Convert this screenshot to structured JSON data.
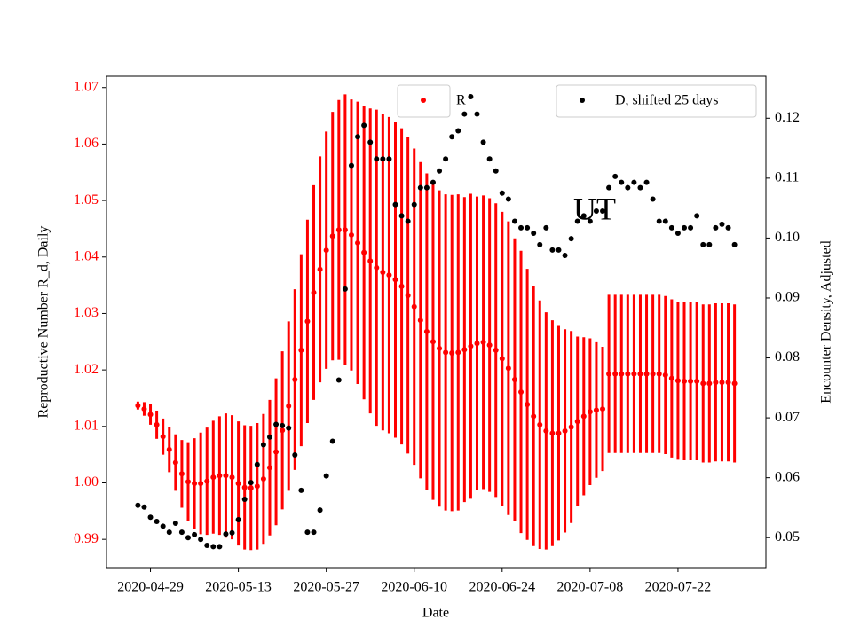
{
  "chart_data": {
    "type": "scatter",
    "x_label": "Date",
    "y_label": "Reproductive Number R_d, Daily",
    "y2_label": "Encounter Density, Adjusted",
    "annotation": "UT",
    "x": [
      "2020-04-27",
      "2020-04-28",
      "2020-04-29",
      "2020-04-30",
      "2020-05-01",
      "2020-05-02",
      "2020-05-03",
      "2020-05-04",
      "2020-05-05",
      "2020-05-06",
      "2020-05-07",
      "2020-05-08",
      "2020-05-09",
      "2020-05-10",
      "2020-05-11",
      "2020-05-12",
      "2020-05-13",
      "2020-05-14",
      "2020-05-15",
      "2020-05-16",
      "2020-05-17",
      "2020-05-18",
      "2020-05-19",
      "2020-05-20",
      "2020-05-21",
      "2020-05-22",
      "2020-05-23",
      "2020-05-24",
      "2020-05-25",
      "2020-05-26",
      "2020-05-27",
      "2020-05-28",
      "2020-05-29",
      "2020-05-30",
      "2020-05-31",
      "2020-06-01",
      "2020-06-02",
      "2020-06-03",
      "2020-06-04",
      "2020-06-05",
      "2020-06-06",
      "2020-06-07",
      "2020-06-08",
      "2020-06-09",
      "2020-06-10",
      "2020-06-11",
      "2020-06-12",
      "2020-06-13",
      "2020-06-14",
      "2020-06-15",
      "2020-06-16",
      "2020-06-17",
      "2020-06-18",
      "2020-06-19",
      "2020-06-20",
      "2020-06-21",
      "2020-06-22",
      "2020-06-23",
      "2020-06-24",
      "2020-06-25",
      "2020-06-26",
      "2020-06-27",
      "2020-06-28",
      "2020-06-29",
      "2020-06-30",
      "2020-07-01",
      "2020-07-02",
      "2020-07-03",
      "2020-07-04",
      "2020-07-05",
      "2020-07-06",
      "2020-07-07",
      "2020-07-08",
      "2020-07-09",
      "2020-07-10",
      "2020-07-11",
      "2020-07-12",
      "2020-07-13",
      "2020-07-14",
      "2020-07-15",
      "2020-07-16",
      "2020-07-17",
      "2020-07-18",
      "2020-07-19",
      "2020-07-20",
      "2020-07-21",
      "2020-07-22",
      "2020-07-23",
      "2020-07-24",
      "2020-07-25",
      "2020-07-26",
      "2020-07-27",
      "2020-07-28",
      "2020-07-29",
      "2020-07-30",
      "2020-07-31"
    ],
    "xlim": [
      "2020-04-22",
      "2020-08-05"
    ],
    "xticks": [
      "2020-04-29",
      "2020-05-13",
      "2020-05-27",
      "2020-06-10",
      "2020-06-24",
      "2020-07-08",
      "2020-07-22"
    ],
    "ylim": [
      0.985,
      1.072
    ],
    "yticks": [
      0.99,
      {
        "value": 1,
        "label": "1.00"
      },
      1.01,
      1.02,
      1.03,
      1.04,
      1.05,
      1.06,
      1.07
    ],
    "y2lim": [
      0.045,
      0.127
    ],
    "y2ticks": [
      0.05,
      0.06,
      0.07,
      0.08,
      0.09,
      {
        "value": 0.1,
        "label": "0.10"
      },
      0.11,
      0.12
    ],
    "series": [
      {
        "name": "R",
        "color": "#ff0000",
        "values": [
          1.0137,
          1.0131,
          1.0121,
          1.0103,
          1.0082,
          1.0059,
          1.0036,
          1.0016,
          1.0002,
          0.9999,
          0.9999,
          1.0003,
          1.001,
          1.0013,
          1.0013,
          1.001,
          0.9999,
          0.9992,
          0.9991,
          0.9994,
          1.0007,
          1.0027,
          1.0055,
          1.0093,
          1.0136,
          1.0183,
          1.0235,
          1.0286,
          1.0337,
          1.0378,
          1.0412,
          1.0437,
          1.0448,
          1.0448,
          1.0439,
          1.0425,
          1.0408,
          1.0393,
          1.0381,
          1.0373,
          1.0368,
          1.036,
          1.0348,
          1.0332,
          1.0312,
          1.0288,
          1.0268,
          1.025,
          1.0238,
          1.0231,
          1.023,
          1.0231,
          1.0236,
          1.0242,
          1.0247,
          1.0249,
          1.0244,
          1.0235,
          1.022,
          1.0203,
          1.0183,
          1.0161,
          1.0139,
          1.0118,
          1.0103,
          1.0092,
          1.0088,
          1.0088,
          1.0092,
          1.0099,
          1.0109,
          1.0118,
          1.0126,
          1.0129,
          1.0131,
          1.0193,
          1.0193,
          1.0193,
          1.0193,
          1.0193,
          1.0193,
          1.0193,
          1.0193,
          1.0193,
          1.0191,
          1.0185,
          1.0181,
          1.018,
          1.018,
          1.018,
          1.0176,
          1.0176,
          1.0178,
          1.0178,
          1.0178,
          1.0176
        ],
        "errors": [
          0.0007,
          0.0012,
          0.0018,
          0.0025,
          0.0032,
          0.004,
          0.005,
          0.006,
          0.007,
          0.008,
          0.009,
          0.0095,
          0.01,
          0.0105,
          0.011,
          0.011,
          0.011,
          0.011,
          0.011,
          0.0112,
          0.0115,
          0.012,
          0.013,
          0.014,
          0.015,
          0.016,
          0.017,
          0.018,
          0.019,
          0.02,
          0.021,
          0.022,
          0.023,
          0.024,
          0.024,
          0.025,
          0.026,
          0.027,
          0.028,
          0.028,
          0.028,
          0.028,
          0.028,
          0.028,
          0.028,
          0.028,
          0.028,
          0.028,
          0.028,
          0.028,
          0.028,
          0.028,
          0.027,
          0.027,
          0.026,
          0.026,
          0.026,
          0.026,
          0.026,
          0.026,
          0.025,
          0.025,
          0.024,
          0.023,
          0.022,
          0.021,
          0.02,
          0.019,
          0.018,
          0.017,
          0.015,
          0.014,
          0.013,
          0.012,
          0.011,
          0.014,
          0.014,
          0.014,
          0.014,
          0.014,
          0.014,
          0.014,
          0.014,
          0.014,
          0.014,
          0.014,
          0.014,
          0.014,
          0.014,
          0.014,
          0.014,
          0.014,
          0.014,
          0.014,
          0.014,
          0.014
        ]
      },
      {
        "name": "D, shifted 25 days",
        "color": "#000000",
        "axis": "y2",
        "values": [
          0.0554,
          0.0551,
          0.0534,
          0.0527,
          0.0519,
          0.0509,
          0.0524,
          0.0509,
          0.05,
          0.0505,
          0.0497,
          0.0487,
          0.0485,
          0.0485,
          0.0506,
          0.0508,
          0.053,
          0.0564,
          0.0592,
          0.0622,
          0.0655,
          0.0668,
          0.0689,
          0.0687,
          0.0683,
          0.0638,
          0.0579,
          0.0509,
          0.0509,
          0.0546,
          0.0603,
          0.0661,
          0.0763,
          0.0915,
          0.1121,
          0.1169,
          0.1188,
          0.116,
          0.1132,
          0.1132,
          0.1132,
          0.1056,
          0.1037,
          0.1028,
          0.1056,
          0.1084,
          0.1084,
          0.1093,
          0.1112,
          0.1132,
          0.1169,
          0.1179,
          0.1207,
          0.1236,
          0.1207,
          0.116,
          0.1132,
          0.1112,
          0.1075,
          0.1065,
          0.1028,
          0.1017,
          0.1017,
          0.1008,
          0.0989,
          0.1017,
          0.098,
          0.098,
          0.0971,
          0.0999,
          0.1028,
          0.1037,
          0.1028,
          0.1045,
          0.1045,
          0.1084,
          0.1103,
          0.1093,
          0.1084,
          0.1093,
          0.1084,
          0.1093,
          0.1065,
          0.1028,
          0.1028,
          0.1017,
          0.1008,
          0.1017,
          0.1017,
          0.1037,
          0.0989,
          0.0989,
          0.1017,
          0.1023,
          0.1017,
          0.0989
        ]
      }
    ]
  }
}
